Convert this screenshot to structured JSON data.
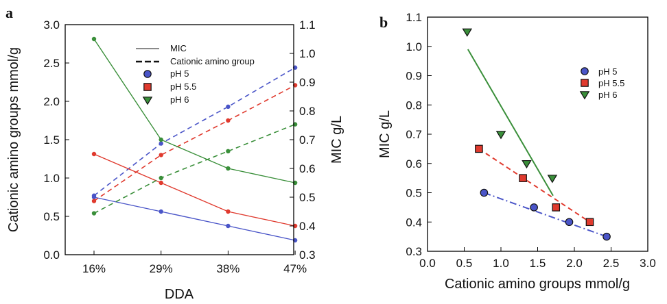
{
  "chart_data": [
    {
      "panel": "a",
      "type": "line",
      "xlabel": "DDA",
      "ylabel_left": "Cationic amino groups mmol/g",
      "ylabel_right": "MIC g/L",
      "categories": [
        "16%",
        "29%",
        "38%",
        "47%"
      ],
      "ylim_left": [
        0.0,
        3.0
      ],
      "ylim_right": [
        0.3,
        1.1
      ],
      "yticks_left": [
        "0.0",
        "0.5",
        "1.0",
        "1.5",
        "2.0",
        "2.5",
        "3.0"
      ],
      "yticks_right": [
        "0.3",
        "0.4",
        "0.5",
        "0.6",
        "0.7",
        "0.8",
        "0.9",
        "1.0",
        "1.1"
      ],
      "legend": {
        "position": "top-right",
        "line_entries": [
          "MIC",
          "Cationic amino group"
        ],
        "marker_entries": [
          "pH 5",
          "pH 5.5",
          "pH 6"
        ]
      },
      "series": [
        {
          "name": "pH 5",
          "color": "#4a55c8",
          "marker": "circle",
          "cationic": [
            0.77,
            1.45,
            1.93,
            2.44
          ],
          "mic": [
            0.5,
            0.45,
            0.4,
            0.35
          ]
        },
        {
          "name": "pH 5.5",
          "color": "#e03a2e",
          "marker": "square",
          "cationic": [
            0.7,
            1.3,
            1.75,
            2.21
          ],
          "mic": [
            0.65,
            0.55,
            0.45,
            0.4
          ]
        },
        {
          "name": "pH 6",
          "color": "#3a8f3a",
          "marker": "triangle",
          "cationic": [
            0.54,
            1.0,
            1.35,
            1.7
          ],
          "mic": [
            1.05,
            0.7,
            0.6,
            0.55
          ]
        }
      ]
    },
    {
      "panel": "b",
      "type": "scatter",
      "xlabel": "Cationic amino groups mmol/g",
      "ylabel": "MIC g/L",
      "xlim": [
        0.0,
        3.0
      ],
      "ylim": [
        0.3,
        1.1
      ],
      "xticks": [
        "0.0",
        "0.5",
        "1.0",
        "1.5",
        "2.0",
        "2.5",
        "3.0"
      ],
      "yticks": [
        "0.3",
        "0.4",
        "0.5",
        "0.6",
        "0.7",
        "0.8",
        "0.9",
        "1.0",
        "1.1"
      ],
      "legend": {
        "position": "top-right",
        "entries": [
          "pH 5",
          "pH 5.5",
          "pH 6"
        ]
      },
      "series": [
        {
          "name": "pH 5",
          "color": "#4a55c8",
          "marker": "circle",
          "line_style": "dash-dot",
          "x": [
            0.77,
            1.45,
            1.93,
            2.44
          ],
          "y": [
            0.5,
            0.45,
            0.4,
            0.35
          ],
          "fit": {
            "x": [
              0.77,
              2.44
            ],
            "y": [
              0.5,
              0.35
            ]
          }
        },
        {
          "name": "pH 5.5",
          "color": "#e03a2e",
          "marker": "square",
          "line_style": "dashed",
          "x": [
            0.7,
            1.3,
            1.75,
            2.21
          ],
          "y": [
            0.65,
            0.55,
            0.45,
            0.4
          ],
          "fit": {
            "x": [
              0.7,
              2.21
            ],
            "y": [
              0.65,
              0.4
            ]
          }
        },
        {
          "name": "pH 6",
          "color": "#3a8f3a",
          "marker": "triangle",
          "line_style": "solid",
          "x": [
            0.54,
            1.0,
            1.35,
            1.7
          ],
          "y": [
            1.05,
            0.7,
            0.6,
            0.55
          ],
          "fit": {
            "x": [
              0.55,
              1.71
            ],
            "y": [
              0.99,
              0.49
            ]
          }
        }
      ]
    }
  ]
}
